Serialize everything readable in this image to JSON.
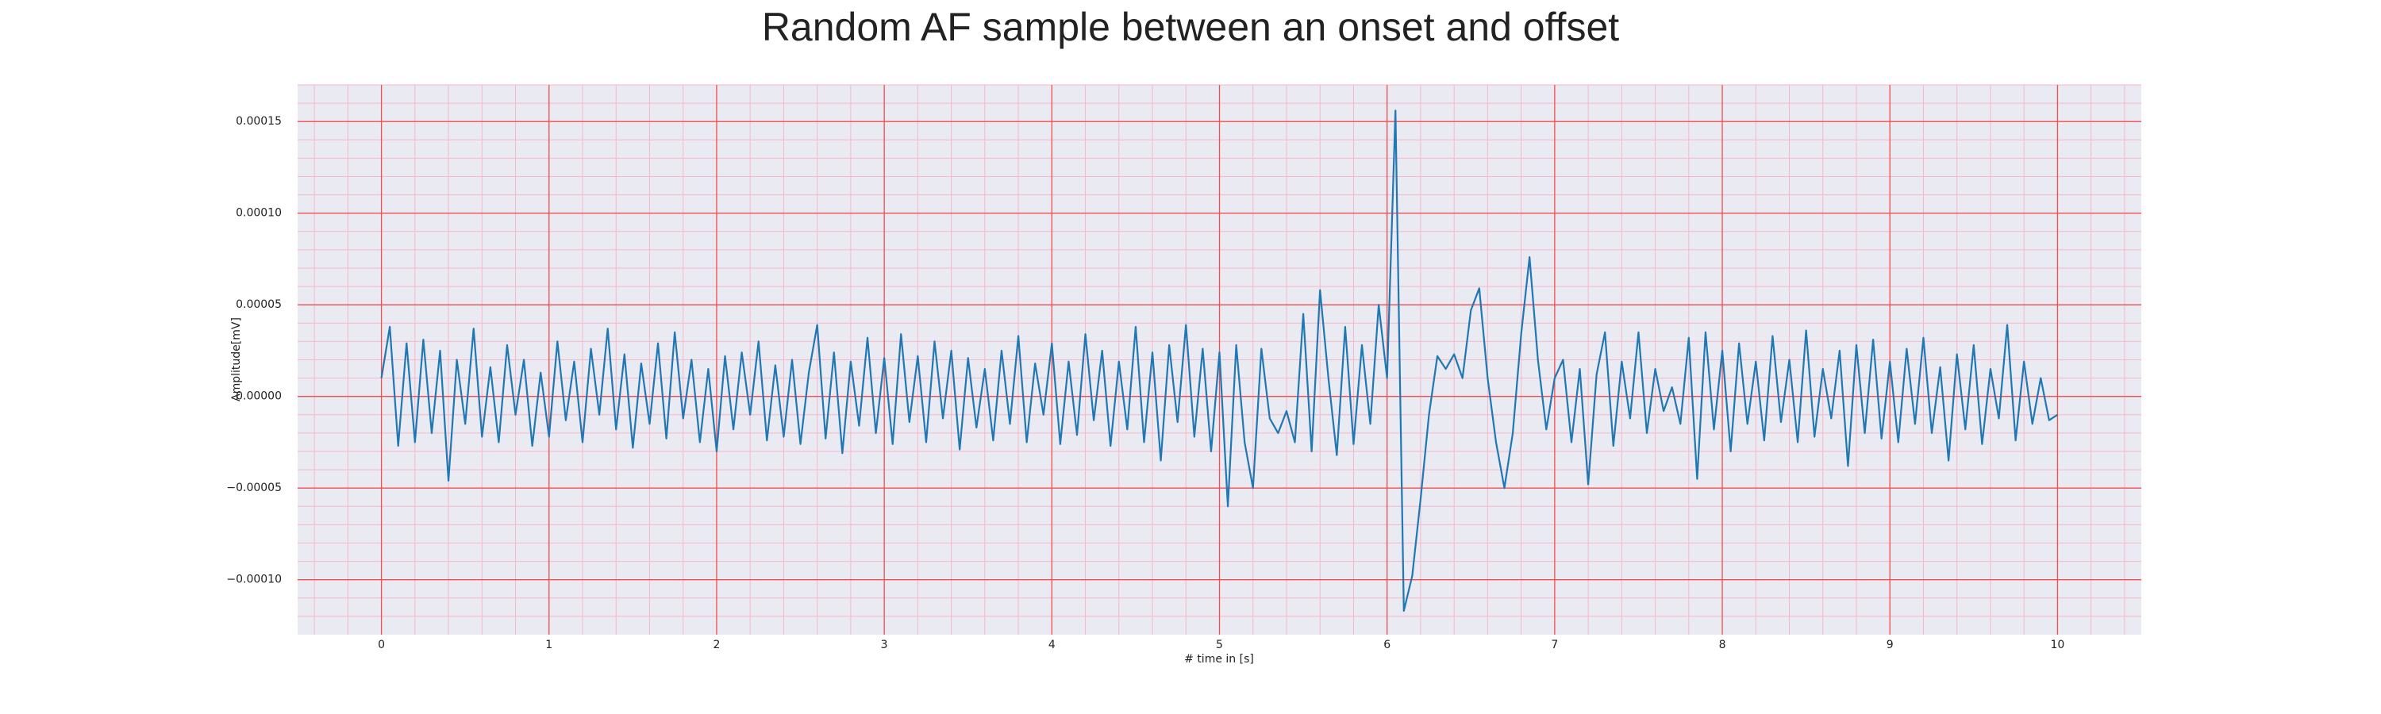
{
  "chart_data": {
    "type": "line",
    "title": "Random AF sample between an onset and offset",
    "xlabel": "# time in [s]",
    "ylabel": "Amplitude[mV]",
    "xlim": [
      -0.5,
      10.5
    ],
    "ylim": [
      -0.00013,
      0.00017
    ],
    "xticks": [
      0,
      1,
      2,
      3,
      4,
      5,
      6,
      7,
      8,
      9,
      10
    ],
    "yticks": [
      {
        "value": -0.0001,
        "label": "−0.00010"
      },
      {
        "value": -5e-05,
        "label": "−0.00005"
      },
      {
        "value": 0,
        "label": "0.00000"
      },
      {
        "value": 5e-05,
        "label": "0.00005"
      },
      {
        "value": 0.0001,
        "label": "0.00010"
      },
      {
        "value": 0.00015,
        "label": "0.00015"
      }
    ],
    "grid": true,
    "minor_grid": true,
    "x": [
      0,
      0.05,
      0.1,
      0.15,
      0.2,
      0.25,
      0.3,
      0.35,
      0.4,
      0.45,
      0.5,
      0.55,
      0.6,
      0.65,
      0.7,
      0.75,
      0.8,
      0.85,
      0.9,
      0.95,
      1,
      1.05,
      1.1,
      1.15,
      1.2,
      1.25,
      1.3,
      1.35,
      1.4,
      1.45,
      1.5,
      1.55,
      1.6,
      1.65,
      1.7,
      1.75,
      1.8,
      1.85,
      1.9,
      1.95,
      2,
      2.05,
      2.1,
      2.15,
      2.2,
      2.25,
      2.3,
      2.35,
      2.4,
      2.45,
      2.5,
      2.55,
      2.6,
      2.65,
      2.7,
      2.75,
      2.8,
      2.85,
      2.9,
      2.95,
      3,
      3.05,
      3.1,
      3.15,
      3.2,
      3.25,
      3.3,
      3.35,
      3.4,
      3.45,
      3.5,
      3.55,
      3.6,
      3.65,
      3.7,
      3.75,
      3.8,
      3.85,
      3.9,
      3.95,
      4,
      4.05,
      4.1,
      4.15,
      4.2,
      4.25,
      4.3,
      4.35,
      4.4,
      4.45,
      4.5,
      4.55,
      4.6,
      4.65,
      4.7,
      4.75,
      4.8,
      4.85,
      4.9,
      4.95,
      5,
      5.05,
      5.1,
      5.15,
      5.2,
      5.25,
      5.3,
      5.35,
      5.4,
      5.45,
      5.5,
      5.55,
      5.6,
      5.65,
      5.7,
      5.75,
      5.8,
      5.85,
      5.9,
      5.95,
      6,
      6.05,
      6.1,
      6.15,
      6.2,
      6.25,
      6.3,
      6.35,
      6.4,
      6.45,
      6.5,
      6.55,
      6.6,
      6.65,
      6.7,
      6.75,
      6.8,
      6.85,
      6.9,
      6.95,
      7,
      7.05,
      7.1,
      7.15,
      7.2,
      7.25,
      7.3,
      7.35,
      7.4,
      7.45,
      7.5,
      7.55,
      7.6,
      7.65,
      7.7,
      7.75,
      7.8,
      7.85,
      7.9,
      7.95,
      8,
      8.05,
      8.1,
      8.15,
      8.2,
      8.25,
      8.3,
      8.35,
      8.4,
      8.45,
      8.5,
      8.55,
      8.6,
      8.65,
      8.7,
      8.75,
      8.8,
      8.85,
      8.9,
      8.95,
      9,
      9.05,
      9.1,
      9.15,
      9.2,
      9.25,
      9.3,
      9.35,
      9.4,
      9.45,
      9.5,
      9.55,
      9.6,
      9.65,
      9.7,
      9.75,
      9.8,
      9.85,
      9.9,
      9.95,
      10
    ],
    "series": [
      {
        "color": "#1f77b4",
        "values": [
          1e-05,
          3.8e-05,
          -2.7e-05,
          2.9e-05,
          -2.5e-05,
          3.1e-05,
          -2e-05,
          2.5e-05,
          -4.6e-05,
          2e-05,
          -1.5e-05,
          3.7e-05,
          -2.2e-05,
          1.6e-05,
          -2.5e-05,
          2.8e-05,
          -1e-05,
          2e-05,
          -2.7e-05,
          1.3e-05,
          -2.2e-05,
          3e-05,
          -1.3e-05,
          1.9e-05,
          -2.5e-05,
          2.6e-05,
          -1e-05,
          3.7e-05,
          -1.8e-05,
          2.3e-05,
          -2.8e-05,
          1.8e-05,
          -1.5e-05,
          2.9e-05,
          -2.3e-05,
          3.5e-05,
          -1.2e-05,
          2e-05,
          -2.5e-05,
          1.5e-05,
          -3e-05,
          2.2e-05,
          -1.8e-05,
          2.4e-05,
          -1e-05,
          3e-05,
          -2.4e-05,
          1.7e-05,
          -2.2e-05,
          2e-05,
          -2.6e-05,
          1.3e-05,
          3.9e-05,
          -2.3e-05,
          2.4e-05,
          -3.1e-05,
          1.9e-05,
          -1.6e-05,
          3.2e-05,
          -2e-05,
          2.1e-05,
          -2.6e-05,
          3.4e-05,
          -1.4e-05,
          2.2e-05,
          -2.5e-05,
          3e-05,
          -1.2e-05,
          2.5e-05,
          -2.9e-05,
          2.1e-05,
          -1.7e-05,
          1.5e-05,
          -2.4e-05,
          2.5e-05,
          -1.5e-05,
          3.3e-05,
          -2.5e-05,
          1.8e-05,
          -1e-05,
          2.9e-05,
          -2.6e-05,
          1.9e-05,
          -2.1e-05,
          3.4e-05,
          -1.3e-05,
          2.5e-05,
          -2.7e-05,
          1.9e-05,
          -1.8e-05,
          3.8e-05,
          -2.5e-05,
          2.4e-05,
          -3.5e-05,
          2.8e-05,
          -1.4e-05,
          3.9e-05,
          -2.2e-05,
          2.6e-05,
          -3e-05,
          2.4e-05,
          -6e-05,
          2.8e-05,
          -2.5e-05,
          -5e-05,
          2.6e-05,
          -1.2e-05,
          -2e-05,
          -8e-06,
          -2.5e-05,
          4.5e-05,
          -3e-05,
          5.8e-05,
          1e-05,
          -3.2e-05,
          3.8e-05,
          -2.6e-05,
          2.8e-05,
          -1.5e-05,
          5e-05,
          1e-05,
          0.000156,
          -0.000117,
          -9.8e-05,
          -5.6e-05,
          -1e-05,
          2.2e-05,
          1.5e-05,
          2.3e-05,
          1e-05,
          4.7e-05,
          5.9e-05,
          1e-05,
          -2.5e-05,
          -5e-05,
          -2e-05,
          3.4e-05,
          7.6e-05,
          2e-05,
          -1.8e-05,
          1e-05,
          2e-05,
          -2.5e-05,
          1.5e-05,
          -4.8e-05,
          1.2e-05,
          3.5e-05,
          -2.7e-05,
          1.9e-05,
          -1.2e-05,
          3.5e-05,
          -2e-05,
          1.5e-05,
          -8e-06,
          5e-06,
          -1.5e-05,
          3.2e-05,
          -4.5e-05,
          3.5e-05,
          -1.8e-05,
          2.5e-05,
          -3e-05,
          2.9e-05,
          -1.5e-05,
          1.9e-05,
          -2.4e-05,
          3.3e-05,
          -1.4e-05,
          2e-05,
          -2.5e-05,
          3.6e-05,
          -2.2e-05,
          1.5e-05,
          -1.2e-05,
          2.5e-05,
          -3.8e-05,
          2.8e-05,
          -2e-05,
          3.1e-05,
          -2.3e-05,
          1.9e-05,
          -2.5e-05,
          2.6e-05,
          -1.5e-05,
          3.2e-05,
          -2e-05,
          1.6e-05,
          -3.5e-05,
          2.3e-05,
          -1.8e-05,
          2.8e-05,
          -2.6e-05,
          1.5e-05,
          -1.2e-05,
          3.9e-05,
          -2.4e-05,
          1.9e-05,
          -1.5e-05,
          1e-05,
          -1.3e-05,
          -1e-05
        ]
      }
    ]
  }
}
